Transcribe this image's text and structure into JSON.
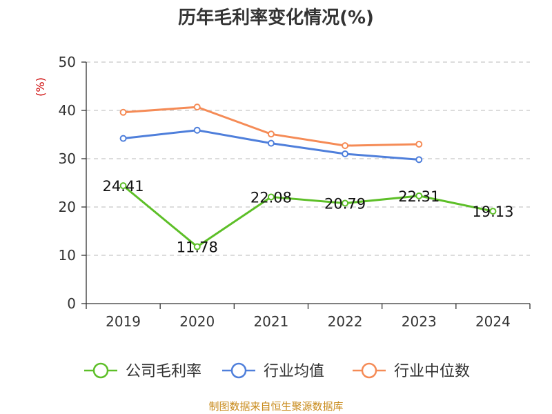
{
  "chart_data": {
    "type": "line",
    "title": "历年毛利率变化情况(%)",
    "ylabel": "(%)",
    "categories": [
      "2019",
      "2020",
      "2021",
      "2022",
      "2023",
      "2024"
    ],
    "ylim": [
      0,
      50
    ],
    "yticks": [
      "0",
      "10",
      "20",
      "30",
      "40",
      "50"
    ],
    "grid": true,
    "legend_position": "bottom",
    "series": [
      {
        "name": "公司毛利率",
        "color": "#5dbf28",
        "values": [
          24.41,
          11.78,
          22.08,
          20.79,
          22.31,
          19.13
        ],
        "labels": [
          "24.41",
          "11.78",
          "22.08",
          "20.79",
          "22.31",
          "19.13"
        ]
      },
      {
        "name": "行业均值",
        "color": "#4f7fdb",
        "values": [
          34.2,
          35.9,
          33.2,
          31.0,
          29.8,
          null
        ]
      },
      {
        "name": "行业中位数",
        "color": "#f58b56",
        "values": [
          39.6,
          40.7,
          35.1,
          32.7,
          33.0,
          null
        ]
      }
    ]
  },
  "colors": {
    "axis": "#333333",
    "grid": "#c8c8c8",
    "unit": "#cc0000",
    "source": "#c88a1a"
  },
  "footer": {
    "source": "制图数据来自恒生聚源数据库"
  }
}
